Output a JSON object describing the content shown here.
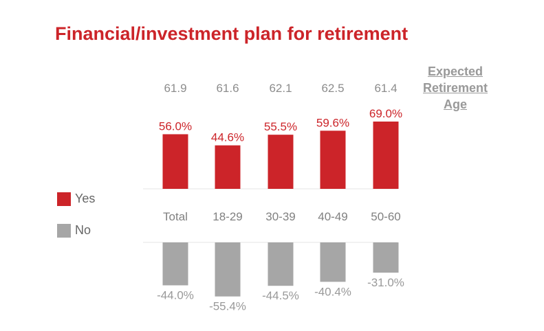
{
  "title": "Financial/investment plan for retirement",
  "retirement_label": [
    "Expected",
    "Retirement",
    "Age"
  ],
  "legend": [
    {
      "label": "Yes",
      "color": "#cc2429"
    },
    {
      "label": "No",
      "color": "#a6a6a6"
    }
  ],
  "chart_data": {
    "type": "bar",
    "title": "Financial/investment plan for retirement",
    "categories": [
      "Total",
      "18-29",
      "30-39",
      "40-49",
      "50-60"
    ],
    "series": [
      {
        "name": "Yes",
        "values": [
          56.0,
          44.6,
          55.5,
          59.6,
          69.0
        ],
        "labels": [
          "56.0%",
          "44.6%",
          "55.5%",
          "59.6%",
          "69.0%"
        ],
        "color": "#cc2429"
      },
      {
        "name": "No",
        "values": [
          -44.0,
          -55.4,
          -44.5,
          -40.4,
          -31.0
        ],
        "labels": [
          "-44.0%",
          "-55.4%",
          "-44.5%",
          "-40.4%",
          "-31.0%"
        ],
        "color": "#a6a6a6"
      }
    ],
    "expected_retirement_age": [
      "61.9",
      "61.6",
      "62.1",
      "62.5",
      "61.4"
    ],
    "legend_placement": "left",
    "grid": false
  }
}
